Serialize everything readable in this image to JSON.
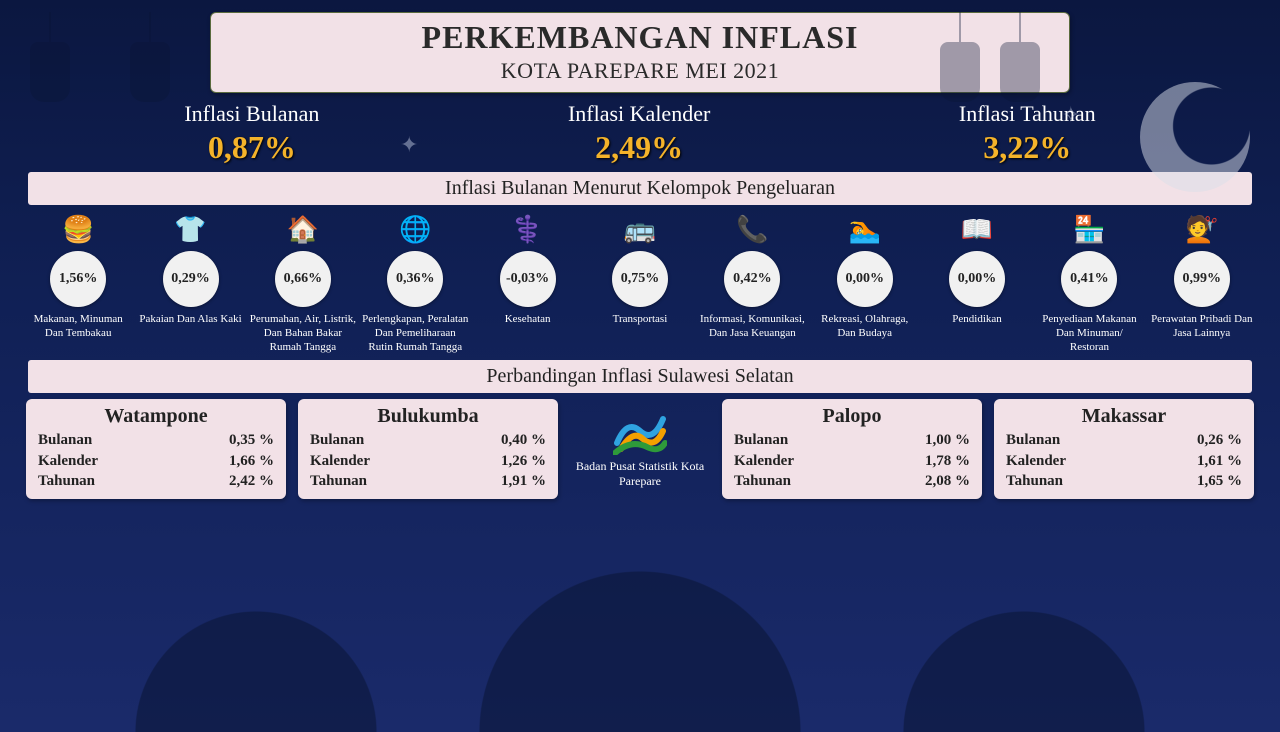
{
  "title": {
    "h1": "PERKEMBANGAN INFLASI",
    "h2": "KOTA PAREPARE MEI 2021"
  },
  "top": [
    {
      "label": "Inflasi Bulanan",
      "value": "0,87%"
    },
    {
      "label": "Inflasi Kalender",
      "value": "2,49%"
    },
    {
      "label": "Inflasi Tahunan",
      "value": "3,22%"
    }
  ],
  "section1": "Inflasi Bulanan Menurut Kelompok Pengeluaran",
  "categories": [
    {
      "icon": "🍔",
      "val": "1,56%",
      "name": "Makanan, Minuman Dan Tembakau"
    },
    {
      "icon": "👕",
      "val": "0,29%",
      "name": "Pakaian Dan Alas Kaki"
    },
    {
      "icon": "🏠",
      "val": "0,66%",
      "name": "Perumahan, Air, Listrik, Dan Bahan Bakar Rumah Tangga"
    },
    {
      "icon": "🌐",
      "val": "0,36%",
      "name": "Perlengkapan, Peralatan Dan Pemeliharaan Rutin Rumah Tangga"
    },
    {
      "icon": "⚕️",
      "val": "-0,03%",
      "name": "Kesehatan"
    },
    {
      "icon": "🚌",
      "val": "0,75%",
      "name": "Transportasi"
    },
    {
      "icon": "📞",
      "val": "0,42%",
      "name": "Informasi, Komunikasi, Dan Jasa Keuangan"
    },
    {
      "icon": "🏊",
      "val": "0,00%",
      "name": "Rekreasi, Olahraga, Dan Budaya"
    },
    {
      "icon": "📖",
      "val": "0,00%",
      "name": "Pendidikan"
    },
    {
      "icon": "🏪",
      "val": "0,41%",
      "name": "Penyediaan Makanan Dan Minuman/ Restoran"
    },
    {
      "icon": "💇",
      "val": "0,99%",
      "name": "Perawatan Pribadi Dan Jasa Lainnya"
    }
  ],
  "section2": "Perbandingan Inflasi Sulawesi Selatan",
  "rowLabels": {
    "b": "Bulanan",
    "k": "Kalender",
    "t": "Tahunan"
  },
  "cities": [
    {
      "name": "Watampone",
      "b": "0,35 %",
      "k": "1,66 %",
      "t": "2,42 %"
    },
    {
      "name": "Bulukumba",
      "b": "0,40 %",
      "k": "1,26 %",
      "t": "1,91 %"
    },
    {
      "name": "Palopo",
      "b": "1,00 %",
      "k": "1,78 %",
      "t": "2,08 %"
    },
    {
      "name": "Makassar",
      "b": "0,26 %",
      "k": "1,61 %",
      "t": "1,65 %"
    }
  ],
  "agency": "Badan Pusat Statistik Kota Parepare",
  "colors": {
    "panel": "#f2e1e7",
    "accent": "#f4b32a",
    "circle": "#f1f1f1",
    "bgTop": "#0b1740",
    "bgBottom": "#1a2a6a",
    "silhouette": "#0a1535"
  }
}
